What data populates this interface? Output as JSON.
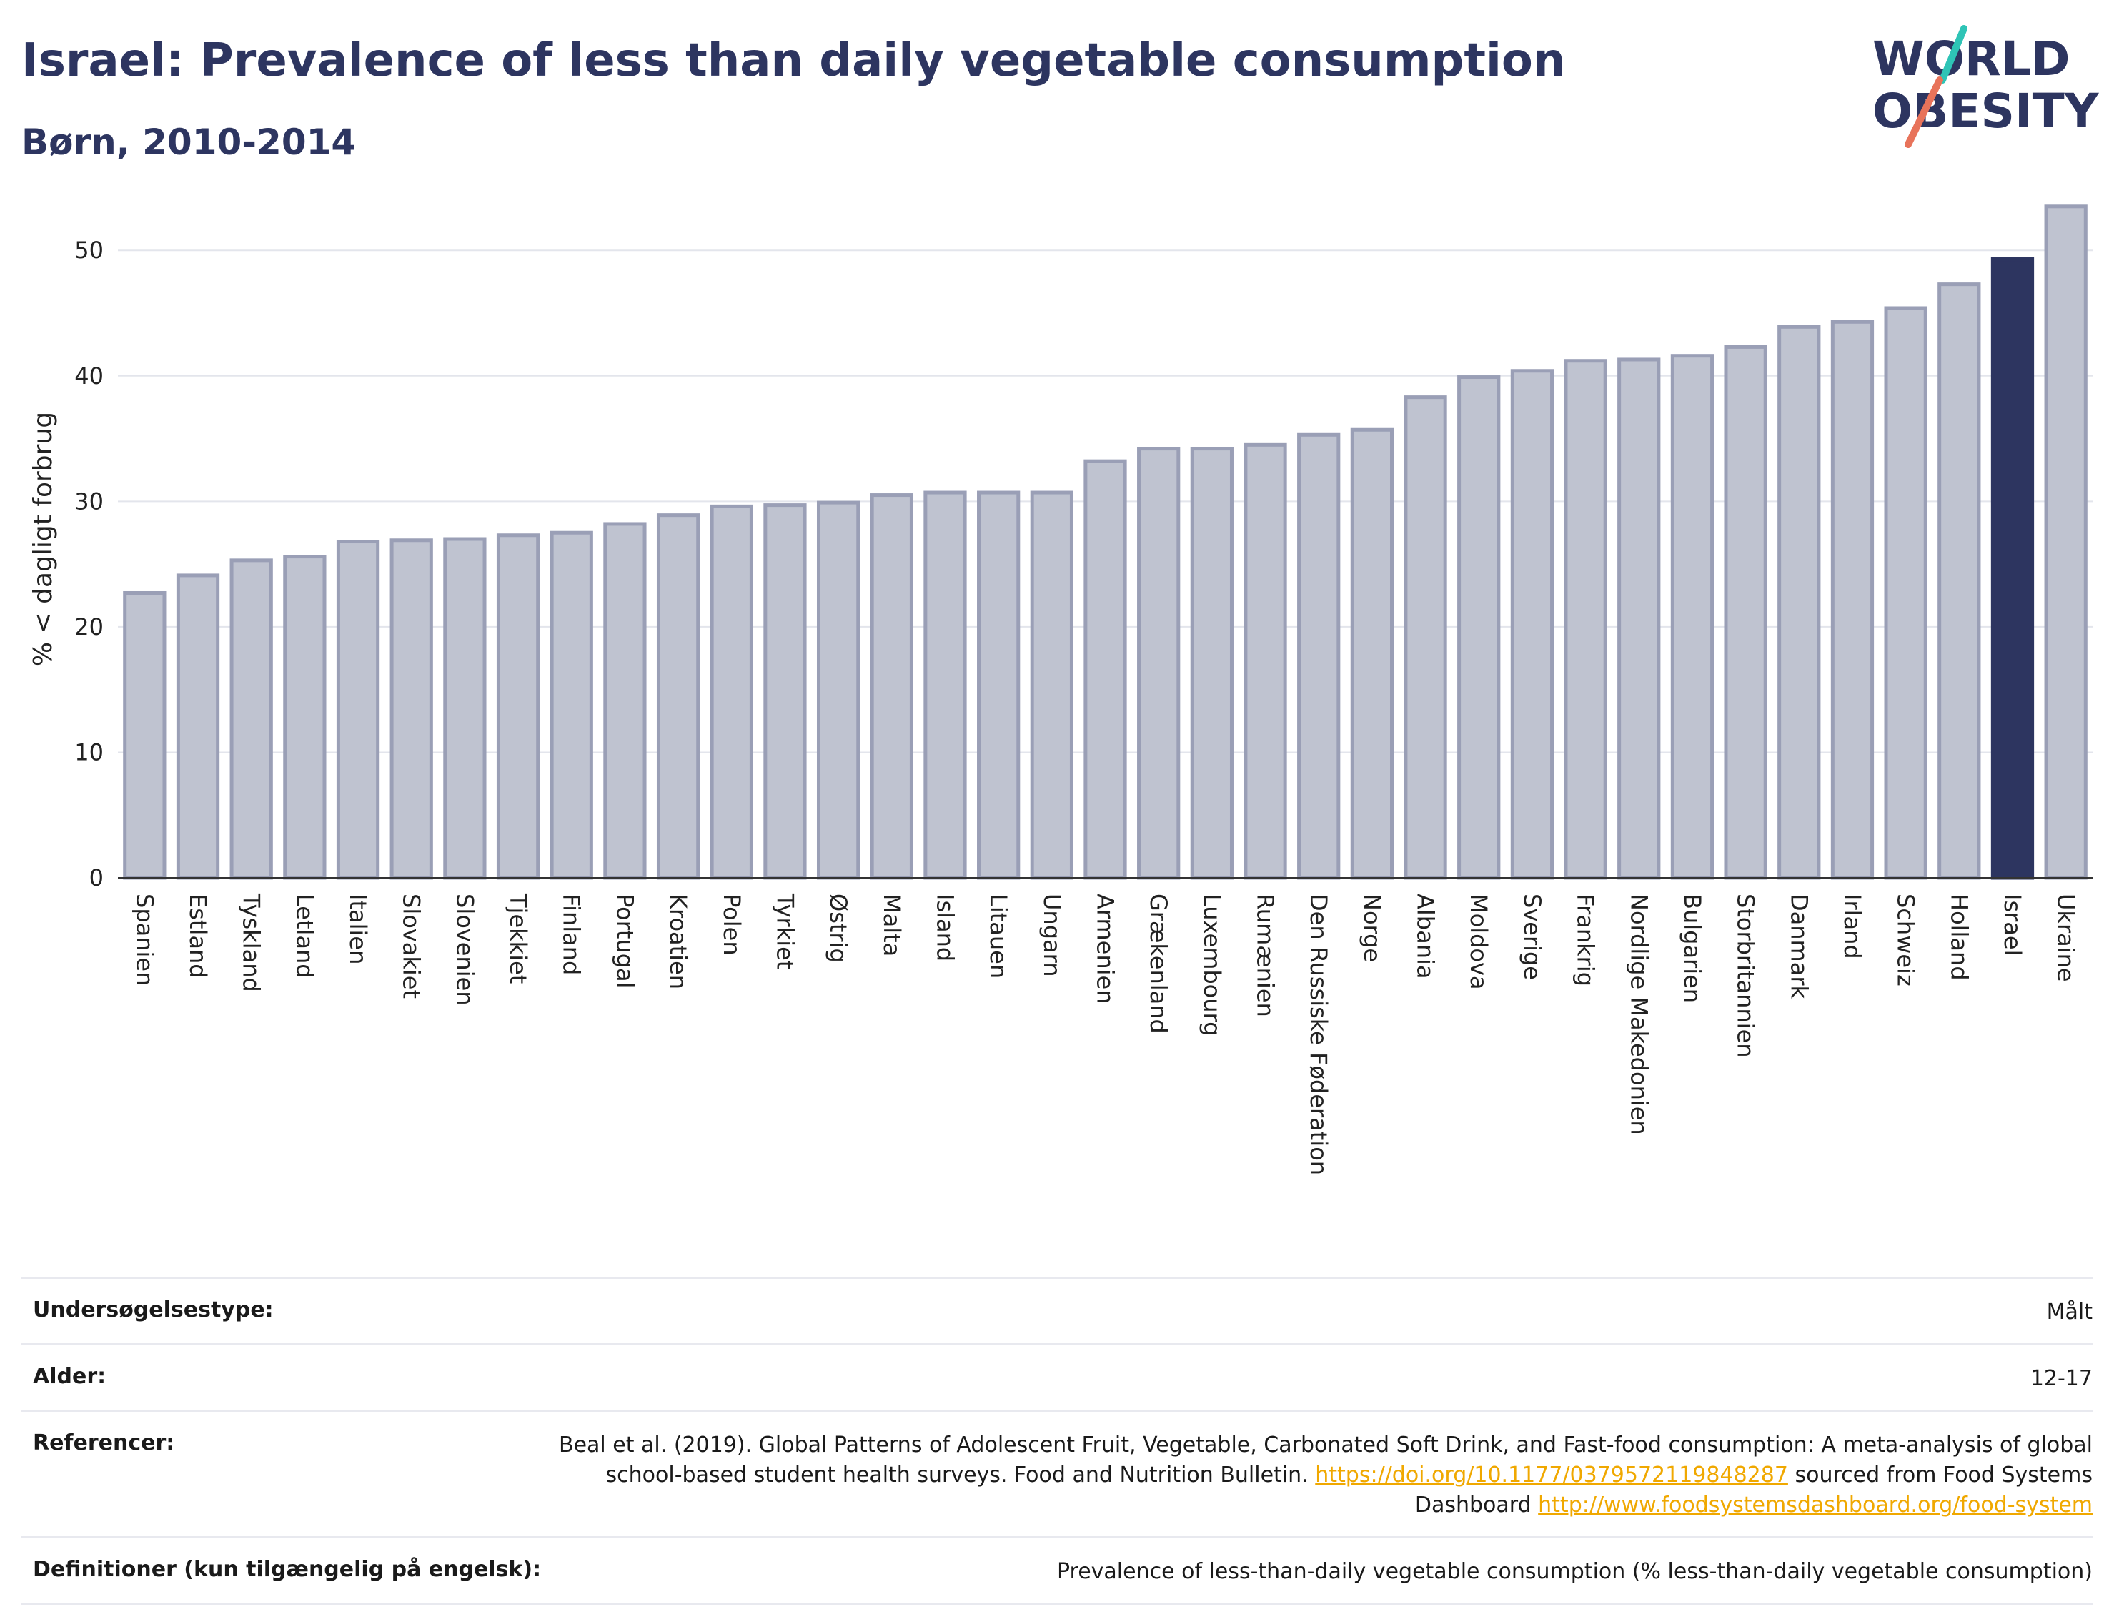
{
  "header": {
    "title": "Israel: Prevalence of less than daily vegetable consumption",
    "subtitle": "Børn, 2010-2014",
    "logo_line1": "WORLD",
    "logo_line2": "OBESITY"
  },
  "colors": {
    "title": "#2d3560",
    "bar": "#bfc3d0",
    "bar_outline": "#9a9fb6",
    "highlight": "#2d3560",
    "logo_teal": "#2ec4b6",
    "logo_red": "#e8735a",
    "link": "#f0a800"
  },
  "chart_data": {
    "type": "bar",
    "ylabel": "% < dagligt forbrug",
    "ylim": [
      0,
      54
    ],
    "yticks": [
      0,
      10,
      20,
      30,
      40,
      50
    ],
    "grid": true,
    "highlight": "Israel",
    "categories": [
      "Spanien",
      "Estland",
      "Tyskland",
      "Letland",
      "Italien",
      "Slovakiet",
      "Slovenien",
      "Tjekkiet",
      "Finland",
      "Portugal",
      "Kroatien",
      "Polen",
      "Tyrkiet",
      "Østrig",
      "Malta",
      "Island",
      "Litauen",
      "Ungarn",
      "Armenien",
      "Grækenland",
      "Luxembourg",
      "Rumænien",
      "Den Russiske Føderation",
      "Norge",
      "Albania",
      "Moldova",
      "Sverige",
      "Frankrig",
      "Nordlige Makedonien",
      "Bulgarien",
      "Storbritannien",
      "Danmark",
      "Irland",
      "Schweiz",
      "Holland",
      "Israel",
      "Ukraine"
    ],
    "values": [
      22.7,
      24.1,
      25.3,
      25.6,
      26.8,
      26.9,
      27.0,
      27.3,
      27.5,
      28.2,
      28.9,
      29.6,
      29.7,
      29.9,
      30.5,
      30.7,
      30.7,
      30.7,
      33.2,
      34.2,
      34.2,
      34.5,
      35.3,
      35.7,
      38.3,
      39.9,
      40.4,
      41.2,
      41.3,
      41.6,
      42.3,
      43.9,
      44.3,
      45.4,
      47.3,
      49.3,
      53.5
    ]
  },
  "info": {
    "survey_type_label": "Undersøgelsestype:",
    "survey_type_value": "Målt",
    "age_label": "Alder:",
    "age_value": "12-17",
    "references_label": "Referencer:",
    "references_text_1": "Beal et al. (2019). Global Patterns of Adolescent Fruit, Vegetable, Carbonated Soft Drink, and Fast-food consumption: A meta-analysis of global school-based student health surveys. Food and Nutrition Bulletin. ",
    "references_link_1": "https://doi.org/10.1177/0379572119848287",
    "references_text_2": " sourced from Food Systems Dashboard ",
    "references_link_2": "http://www.foodsystemsdashboard.org/food-system",
    "definitions_label": "Definitioner (kun tilgængelig på engelsk):",
    "definitions_value": "Prevalence of less-than-daily vegetable consumption (% less-than-daily vegetable consumption)"
  }
}
